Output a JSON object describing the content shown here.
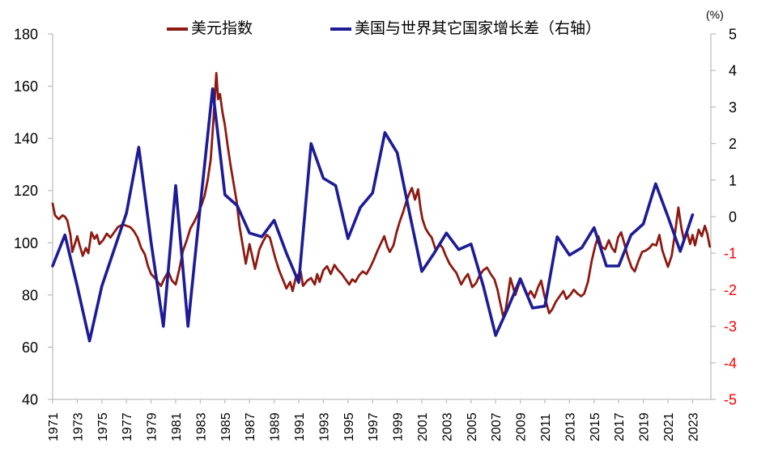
{
  "chart": {
    "unit_label": "(%)",
    "legend": [
      {
        "label": "美元指数",
        "color": "#8C1A12"
      },
      {
        "label": "美国与世界其它国家增长差（右轴）",
        "color": "#1D1C96"
      }
    ]
  },
  "chart_data": {
    "type": "line",
    "title": "",
    "xlabel": "",
    "ylabel_left": "",
    "ylabel_right": "(%)",
    "grid": false,
    "legend_position": "top-center",
    "x_axis": {
      "start": 1971,
      "end": 2024.5,
      "tick_labels": [
        1971,
        1973,
        1975,
        1977,
        1979,
        1981,
        1983,
        1985,
        1987,
        1989,
        1991,
        1993,
        1995,
        1997,
        1999,
        2001,
        2003,
        2005,
        2007,
        2009,
        2011,
        2013,
        2015,
        2017,
        2019,
        2021,
        2023
      ]
    },
    "left_axis": {
      "min": 40,
      "max": 180,
      "step": 20,
      "ticks": [
        180,
        160,
        140,
        120,
        100,
        80,
        60,
        40
      ],
      "label_color": "#000000"
    },
    "right_axis": {
      "min": -5,
      "max": 5,
      "step": 1,
      "ticks": [
        5,
        4,
        3,
        2,
        1,
        0,
        -1,
        -2,
        -3,
        -4,
        -5
      ],
      "positive_label_color": "#000000",
      "negative_label_color": "#FF0000",
      "unit": "(%)"
    },
    "axis_line_color": "#BFBFBF",
    "series": [
      {
        "name": "美元指数",
        "axis": "left",
        "color": "#8C1A12",
        "stroke_width": 2.8,
        "points": [
          [
            1971.0,
            115
          ],
          [
            1971.2,
            110.5
          ],
          [
            1971.5,
            109
          ],
          [
            1971.8,
            110.5
          ],
          [
            1972.0,
            110
          ],
          [
            1972.2,
            108.5
          ],
          [
            1972.45,
            103
          ],
          [
            1972.6,
            96.5
          ],
          [
            1972.8,
            99.5
          ],
          [
            1973.0,
            102.5
          ],
          [
            1973.2,
            99
          ],
          [
            1973.45,
            95
          ],
          [
            1973.7,
            98
          ],
          [
            1973.9,
            96
          ],
          [
            1974.15,
            104
          ],
          [
            1974.4,
            101.5
          ],
          [
            1974.6,
            103
          ],
          [
            1974.8,
            99.5
          ],
          [
            1975.1,
            101
          ],
          [
            1975.4,
            103.5
          ],
          [
            1975.7,
            102
          ],
          [
            1976.0,
            104
          ],
          [
            1976.3,
            106
          ],
          [
            1976.7,
            107
          ],
          [
            1977.0,
            106.5
          ],
          [
            1977.3,
            106
          ],
          [
            1977.6,
            104.5
          ],
          [
            1977.9,
            102
          ],
          [
            1978.2,
            98
          ],
          [
            1978.5,
            95.5
          ],
          [
            1978.75,
            91
          ],
          [
            1979.0,
            88
          ],
          [
            1979.3,
            86.5
          ],
          [
            1979.55,
            85
          ],
          [
            1979.8,
            83.5
          ],
          [
            1980.1,
            86.5
          ],
          [
            1980.4,
            89
          ],
          [
            1980.7,
            85.5
          ],
          [
            1981.0,
            84
          ],
          [
            1981.3,
            90
          ],
          [
            1981.6,
            97
          ],
          [
            1981.9,
            101
          ],
          [
            1982.2,
            105.5
          ],
          [
            1982.5,
            108
          ],
          [
            1982.8,
            111
          ],
          [
            1983.1,
            114.5
          ],
          [
            1983.35,
            118
          ],
          [
            1983.6,
            124
          ],
          [
            1983.85,
            132
          ],
          [
            1984.05,
            146
          ],
          [
            1984.2,
            157
          ],
          [
            1984.3,
            165
          ],
          [
            1984.45,
            155
          ],
          [
            1984.6,
            157
          ],
          [
            1984.8,
            150
          ],
          [
            1985.0,
            145
          ],
          [
            1985.2,
            138
          ],
          [
            1985.45,
            130
          ],
          [
            1985.7,
            123
          ],
          [
            1985.95,
            116
          ],
          [
            1986.2,
            106
          ],
          [
            1986.45,
            99
          ],
          [
            1986.7,
            92
          ],
          [
            1987.0,
            99.5
          ],
          [
            1987.45,
            90
          ],
          [
            1987.8,
            97.5
          ],
          [
            1988.1,
            100.5
          ],
          [
            1988.4,
            103
          ],
          [
            1988.65,
            102
          ],
          [
            1989.1,
            94
          ],
          [
            1989.4,
            89.5
          ],
          [
            1990.0,
            82.5
          ],
          [
            1990.3,
            85
          ],
          [
            1990.5,
            81.5
          ],
          [
            1990.75,
            86.5
          ],
          [
            1991.15,
            89
          ],
          [
            1991.35,
            83.5
          ],
          [
            1991.7,
            85.5
          ],
          [
            1992.0,
            86.5
          ],
          [
            1992.3,
            84
          ],
          [
            1992.5,
            88
          ],
          [
            1992.7,
            85
          ],
          [
            1993.0,
            89.5
          ],
          [
            1993.3,
            91
          ],
          [
            1993.6,
            88
          ],
          [
            1993.9,
            91.5
          ],
          [
            1994.2,
            89.5
          ],
          [
            1994.5,
            88
          ],
          [
            1994.8,
            86
          ],
          [
            1995.1,
            84
          ],
          [
            1995.35,
            86
          ],
          [
            1995.6,
            85
          ],
          [
            1995.9,
            87.5
          ],
          [
            1996.2,
            89
          ],
          [
            1996.5,
            88
          ],
          [
            1996.8,
            90.5
          ],
          [
            1997.1,
            93.5
          ],
          [
            1997.4,
            97
          ],
          [
            1997.7,
            100
          ],
          [
            1997.95,
            102.5
          ],
          [
            1998.2,
            98.5
          ],
          [
            1998.4,
            96.5
          ],
          [
            1998.7,
            99
          ],
          [
            1998.95,
            104
          ],
          [
            1999.2,
            108
          ],
          [
            1999.5,
            112
          ],
          [
            1999.75,
            116
          ],
          [
            2000.0,
            119
          ],
          [
            2000.2,
            121
          ],
          [
            2000.45,
            116.5
          ],
          [
            2000.7,
            120.5
          ],
          [
            2000.9,
            113
          ],
          [
            2001.05,
            109
          ],
          [
            2001.3,
            105.5
          ],
          [
            2001.55,
            103.5
          ],
          [
            2001.8,
            102
          ],
          [
            2002.15,
            97
          ],
          [
            2002.45,
            99.5
          ],
          [
            2002.7,
            98
          ],
          [
            2002.9,
            95.5
          ],
          [
            2003.25,
            92
          ],
          [
            2003.55,
            90
          ],
          [
            2003.8,
            88.5
          ],
          [
            2004.2,
            84
          ],
          [
            2004.5,
            86.5
          ],
          [
            2004.75,
            88
          ],
          [
            2005.1,
            83
          ],
          [
            2005.4,
            84.5
          ],
          [
            2005.7,
            87.5
          ],
          [
            2006.0,
            89.5
          ],
          [
            2006.3,
            90.5
          ],
          [
            2006.6,
            88
          ],
          [
            2006.9,
            86
          ],
          [
            2007.15,
            82
          ],
          [
            2007.35,
            77.5
          ],
          [
            2007.6,
            72
          ],
          [
            2007.8,
            74
          ],
          [
            2008.0,
            80
          ],
          [
            2008.2,
            86.5
          ],
          [
            2008.45,
            82.5
          ],
          [
            2008.6,
            80
          ],
          [
            2008.85,
            83.5
          ],
          [
            2009.05,
            86
          ],
          [
            2009.3,
            83
          ],
          [
            2009.6,
            79.5
          ],
          [
            2009.85,
            81.5
          ],
          [
            2010.15,
            79
          ],
          [
            2010.45,
            83
          ],
          [
            2010.7,
            85.5
          ],
          [
            2010.95,
            80
          ],
          [
            2011.15,
            76.5
          ],
          [
            2011.35,
            73
          ],
          [
            2011.6,
            74.5
          ],
          [
            2011.9,
            77.5
          ],
          [
            2012.2,
            79.5
          ],
          [
            2012.5,
            81.5
          ],
          [
            2012.75,
            78.5
          ],
          [
            2013.05,
            80
          ],
          [
            2013.35,
            82
          ],
          [
            2013.65,
            80.5
          ],
          [
            2013.95,
            79.5
          ],
          [
            2014.2,
            80.5
          ],
          [
            2014.5,
            85
          ],
          [
            2014.8,
            93
          ],
          [
            2015.1,
            99
          ],
          [
            2015.35,
            102.5
          ],
          [
            2015.6,
            98.5
          ],
          [
            2015.9,
            97.5
          ],
          [
            2016.2,
            101
          ],
          [
            2016.45,
            98
          ],
          [
            2016.7,
            96.5
          ],
          [
            2016.95,
            102
          ],
          [
            2017.2,
            104
          ],
          [
            2017.5,
            99
          ],
          [
            2017.75,
            94.5
          ],
          [
            2018.05,
            90.5
          ],
          [
            2018.3,
            89
          ],
          [
            2018.6,
            93
          ],
          [
            2018.9,
            96.5
          ],
          [
            2019.2,
            97
          ],
          [
            2019.5,
            98
          ],
          [
            2019.75,
            99.5
          ],
          [
            2020.05,
            99
          ],
          [
            2020.3,
            103
          ],
          [
            2020.55,
            97
          ],
          [
            2020.8,
            93.5
          ],
          [
            2021.0,
            90.8
          ],
          [
            2021.3,
            95
          ],
          [
            2021.6,
            104.5
          ],
          [
            2021.85,
            113.5
          ],
          [
            2022.1,
            105.5
          ],
          [
            2022.3,
            101
          ],
          [
            2022.55,
            104
          ],
          [
            2022.8,
            99.5
          ],
          [
            2023.0,
            103
          ],
          [
            2023.2,
            99
          ],
          [
            2023.5,
            105
          ],
          [
            2023.75,
            102.5
          ],
          [
            2024.0,
            106.5
          ],
          [
            2024.2,
            103.5
          ],
          [
            2024.4,
            98.5
          ]
        ]
      },
      {
        "name": "美国与世界其它国家增长差（右轴）",
        "axis": "right",
        "color": "#1D1C96",
        "stroke_width": 3.6,
        "points": [
          [
            1971,
            -1.35
          ],
          [
            1972,
            -0.5
          ],
          [
            1973,
            -1.9
          ],
          [
            1974,
            -3.4
          ],
          [
            1975,
            -1.9
          ],
          [
            1976,
            -0.9
          ],
          [
            1977,
            0.1
          ],
          [
            1978,
            1.9
          ],
          [
            1979,
            -0.7
          ],
          [
            1980,
            -3.0
          ],
          [
            1981,
            0.85
          ],
          [
            1982,
            -3.0
          ],
          [
            1983,
            0.3
          ],
          [
            1984,
            3.5
          ],
          [
            1985,
            0.6
          ],
          [
            1986,
            0.3
          ],
          [
            1987,
            -0.45
          ],
          [
            1988,
            -0.55
          ],
          [
            1989,
            -0.1
          ],
          [
            1990,
            -1.0
          ],
          [
            1991,
            -1.8
          ],
          [
            1992,
            2.0
          ],
          [
            1993,
            1.05
          ],
          [
            1994,
            0.85
          ],
          [
            1995,
            -0.6
          ],
          [
            1996,
            0.25
          ],
          [
            1997,
            0.65
          ],
          [
            1998,
            2.3
          ],
          [
            1999,
            1.75
          ],
          [
            2000,
            0.1
          ],
          [
            2001,
            -1.5
          ],
          [
            2002,
            -1.0
          ],
          [
            2003,
            -0.45
          ],
          [
            2004,
            -0.9
          ],
          [
            2005,
            -0.75
          ],
          [
            2006,
            -1.9
          ],
          [
            2007,
            -3.25
          ],
          [
            2008,
            -2.5
          ],
          [
            2009,
            -1.7
          ],
          [
            2010,
            -2.5
          ],
          [
            2011,
            -2.45
          ],
          [
            2012,
            -0.55
          ],
          [
            2013,
            -1.05
          ],
          [
            2014,
            -0.85
          ],
          [
            2015,
            -0.3
          ],
          [
            2016,
            -1.35
          ],
          [
            2017,
            -1.35
          ],
          [
            2018,
            -0.5
          ],
          [
            2019,
            -0.2
          ],
          [
            2020,
            0.9
          ],
          [
            2021,
            0.0
          ],
          [
            2022,
            -0.95
          ],
          [
            2023,
            0.05
          ]
        ]
      }
    ]
  }
}
